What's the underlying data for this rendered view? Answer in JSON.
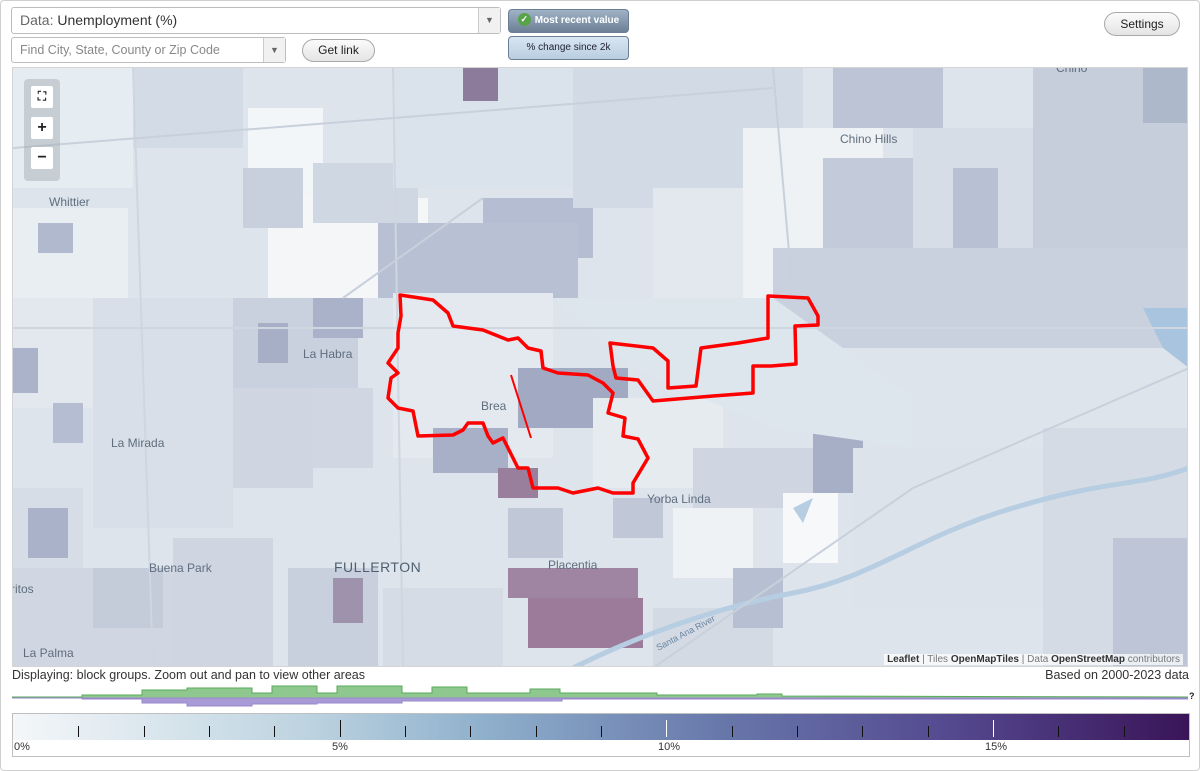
{
  "controls": {
    "data_label": "Data:",
    "data_value": "Unemployment (%)",
    "search_placeholder": "Find City, State, County or Zip Code",
    "get_link": "Get link",
    "settings": "Settings",
    "toggle_recent": "Most recent value",
    "toggle_change": "% change since 2k"
  },
  "map": {
    "places": {
      "chino": "Chino",
      "chino_hills": "Chino Hills",
      "whittier": "Whittier",
      "la_habra": "La Habra",
      "brea": "Brea",
      "la_mirada": "La Mirada",
      "yorba_linda": "Yorba Linda",
      "buena_park": "Buena Park",
      "fullerton": "FULLERTON",
      "placentia": "Placentia",
      "la_palma": "La Palma",
      "ritos": "ritos",
      "river": "Santa Ana River"
    },
    "attribution": {
      "leaflet": "Leaflet",
      "tiles_prefix": "Tiles",
      "tiles": "OpenMapTiles",
      "data_prefix": "Data",
      "data": "OpenStreetMap",
      "suffix": "contributors"
    },
    "highlight_color": "#ff0000"
  },
  "status": {
    "displaying": "Displaying: block groups. Zoom out and pan to view other areas",
    "based_on": "Based on 2000-2023 data",
    "help": "?"
  },
  "legend": {
    "min": 0,
    "max": 18,
    "major_labels": [
      "0%",
      "5%",
      "10%",
      "15%"
    ],
    "colors": [
      "#f4f7f9",
      "#bdd3e0",
      "#8fb0cc",
      "#6878ab",
      "#54488f",
      "#3a1458"
    ]
  },
  "distribution": {
    "green_color": "#5aaa5a",
    "purple_color": "#9988cc"
  }
}
